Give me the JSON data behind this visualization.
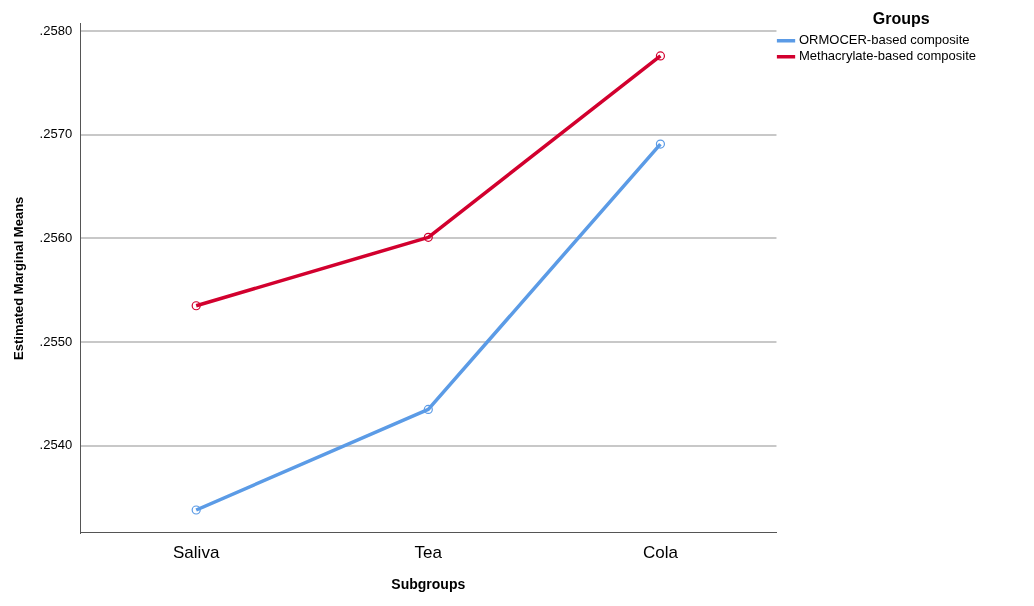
{
  "chart_data": {
    "type": "line",
    "xlabel": "Subgroups",
    "ylabel": "Estimated Marginal Means",
    "legend_title": "Groups",
    "categories": [
      "Saliva",
      "Tea",
      "Cola"
    ],
    "series": [
      {
        "name": "ORMOCER-based composite",
        "color": "#5b9be6",
        "values": [
          0.25338,
          0.25435,
          0.25691
        ]
      },
      {
        "name": "Methacrylate-based composite",
        "color": "#d2002e",
        "values": [
          0.25535,
          0.25601,
          0.25776
        ]
      }
    ],
    "ylim": [
      0.25316,
      0.25807
    ],
    "yticks": [
      {
        "value": 0.254,
        "label": ".2540"
      },
      {
        "value": 0.255,
        "label": ".2550"
      },
      {
        "value": 0.256,
        "label": ".2560"
      },
      {
        "value": 0.257,
        "label": ".2570"
      },
      {
        "value": 0.258,
        "label": ".2580"
      }
    ],
    "grid": "y",
    "legend": "top right",
    "marker": "circle",
    "line_style": "solid"
  }
}
